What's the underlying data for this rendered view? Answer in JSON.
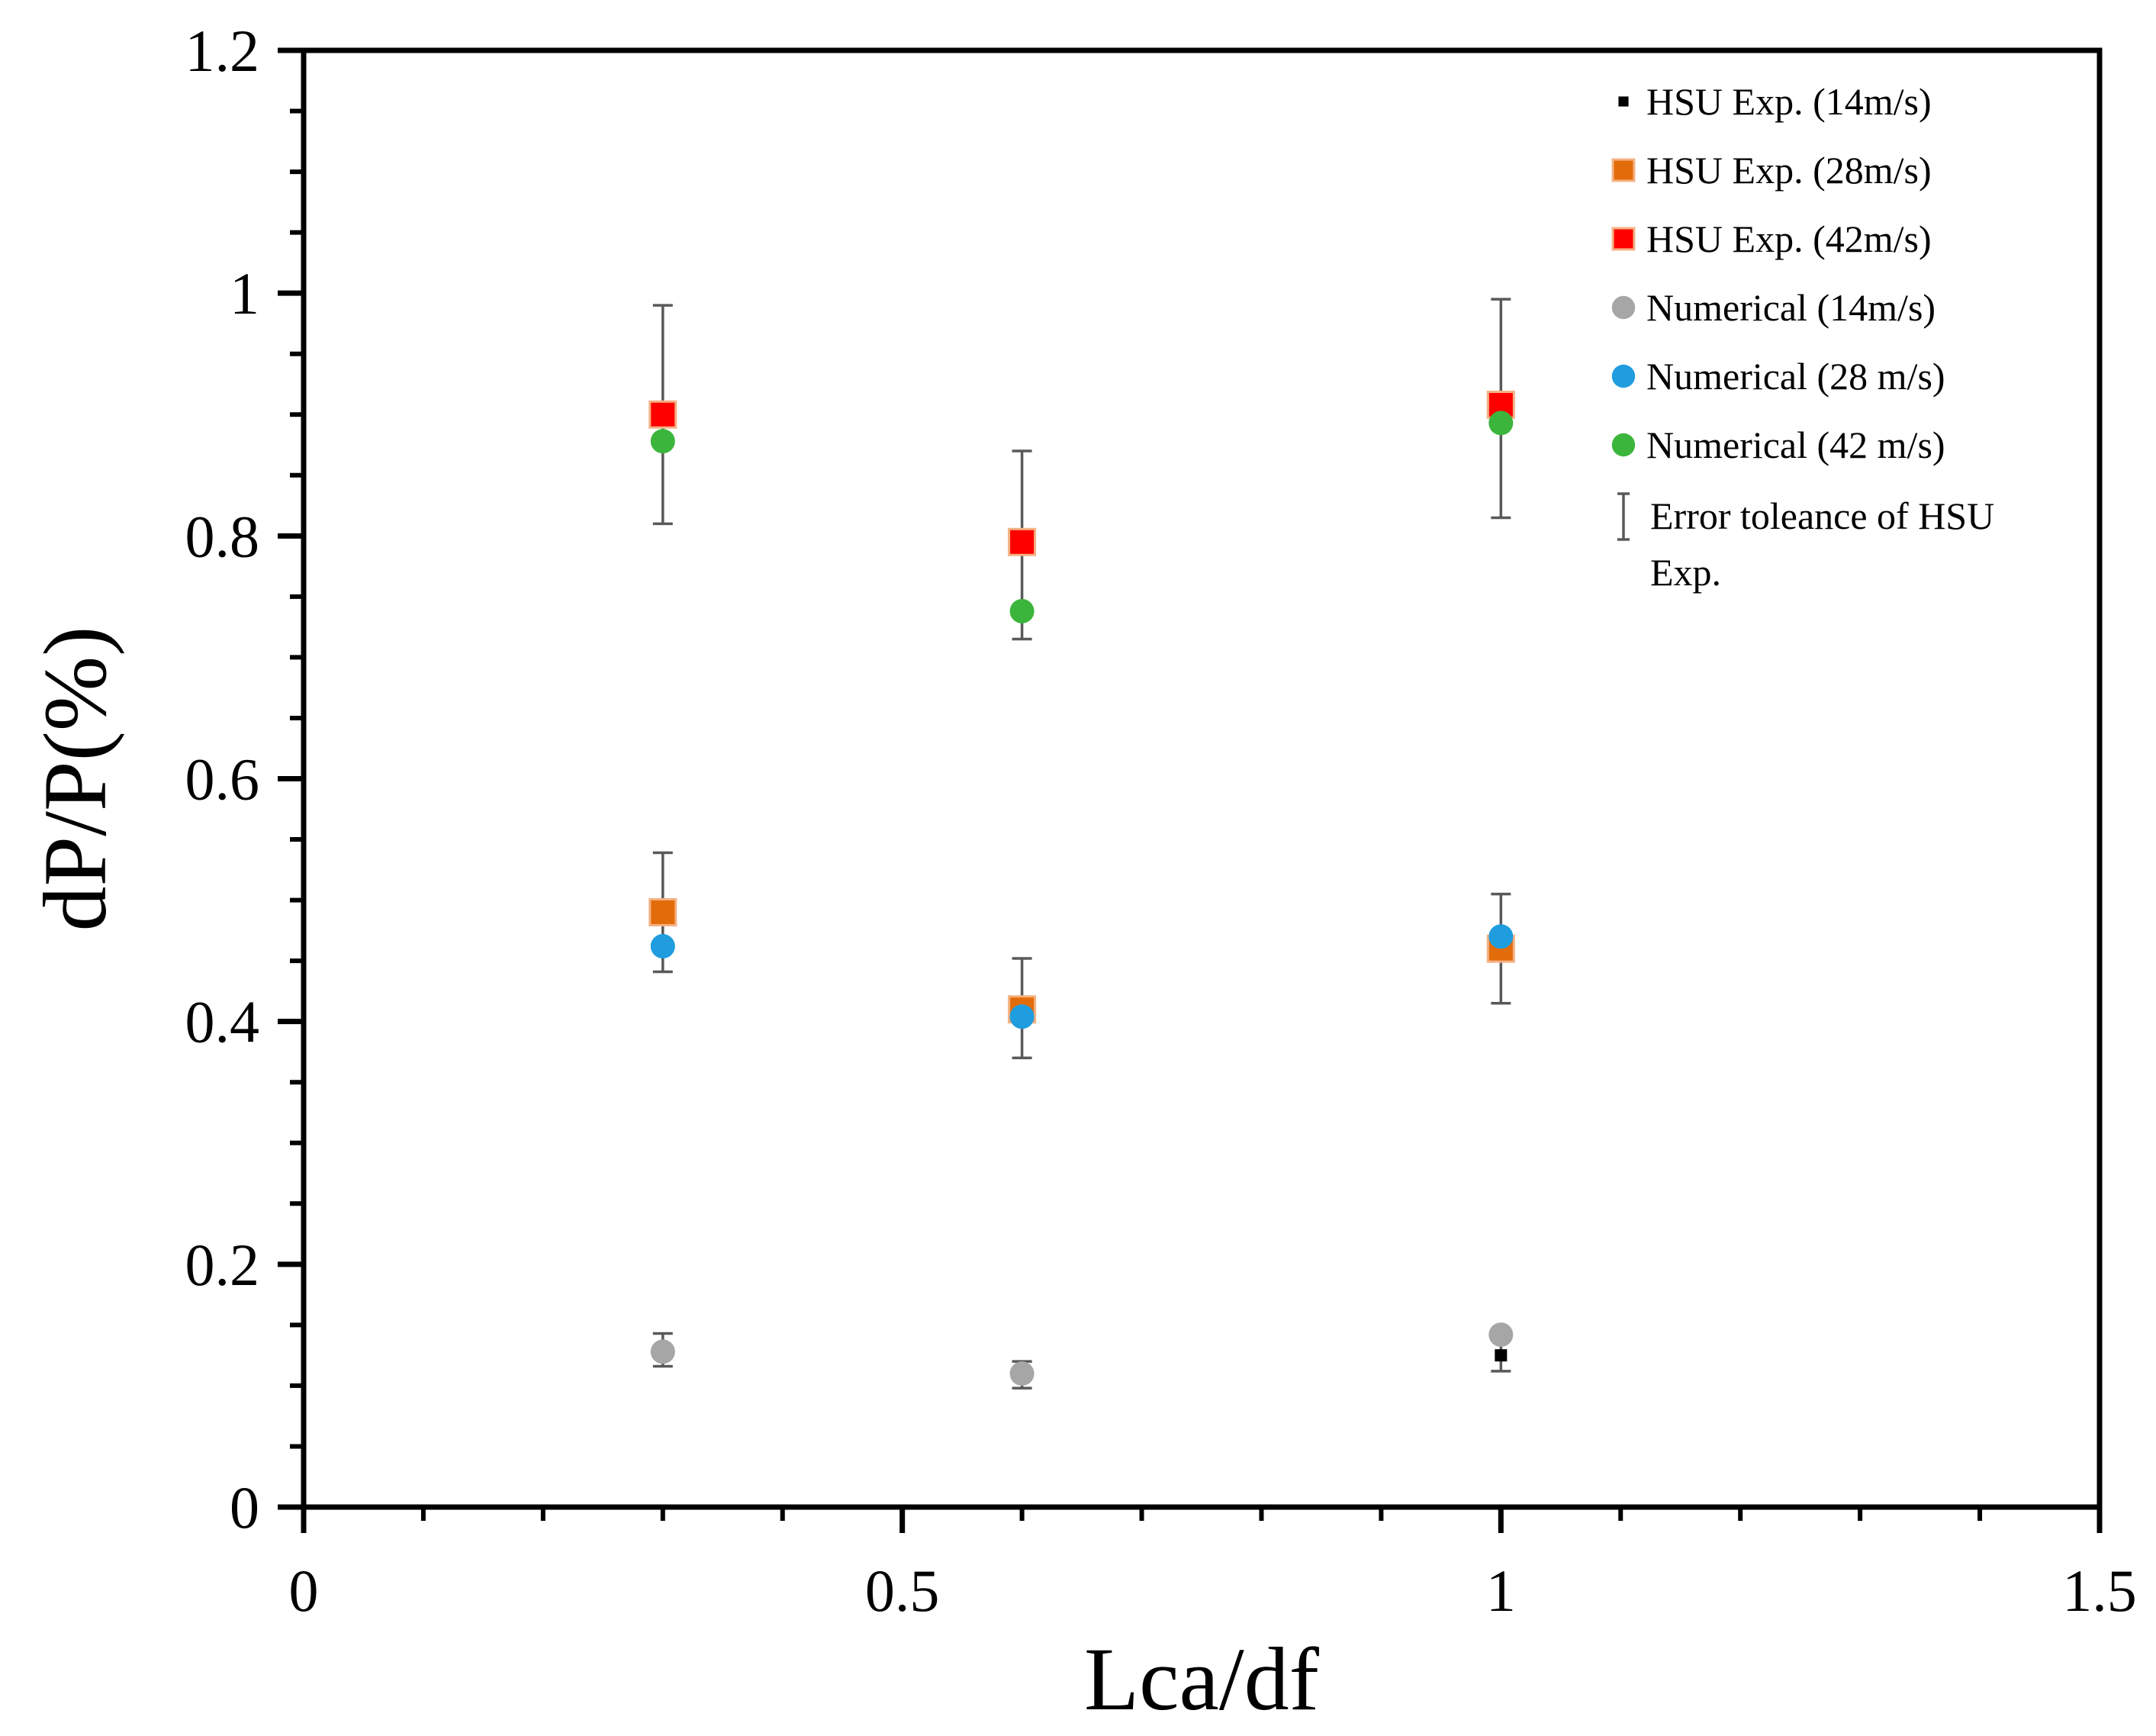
{
  "chart_data": {
    "type": "scatter",
    "title": "",
    "xlabel": "Lca/df",
    "ylabel": "dP/P(%)",
    "xlim": [
      0,
      1.5
    ],
    "ylim": [
      0,
      1.2
    ],
    "x_ticks": [
      0,
      0.5,
      1,
      1.5
    ],
    "x_tick_labels": [
      "0",
      "0.5",
      "1",
      "1.5"
    ],
    "y_ticks": [
      0,
      0.2,
      0.4,
      0.6,
      0.8,
      1,
      1.2
    ],
    "y_tick_labels": [
      "0",
      "0.2",
      "0.4",
      "0.6",
      "0.8",
      "1",
      "1.2"
    ],
    "x_minor_step": 0.1,
    "y_minor_step": 0.05,
    "grid": false,
    "legend_position": "top-right",
    "series": [
      {
        "name": "HSU Exp. (14m/s)",
        "marker": "square-small",
        "color": "#000000",
        "x": [
          0.3,
          0.6,
          1.0
        ],
        "y": [
          0.13,
          0.11,
          0.125
        ],
        "yerr_low": [
          0.116,
          0.098,
          0.112
        ],
        "yerr_high": [
          0.143,
          0.12,
          0.14
        ]
      },
      {
        "name": "HSU Exp. (28m/s)",
        "marker": "square",
        "color": "#e36c0a",
        "x": [
          0.3,
          0.6,
          1.0
        ],
        "y": [
          0.49,
          0.41,
          0.46
        ],
        "yerr_low": [
          0.441,
          0.37,
          0.415
        ],
        "yerr_high": [
          0.539,
          0.452,
          0.505
        ]
      },
      {
        "name": "HSU Exp. (42m/s)",
        "marker": "square",
        "color": "#ff0000",
        "x": [
          0.3,
          0.6,
          1.0
        ],
        "y": [
          0.9,
          0.795,
          0.908
        ],
        "yerr_low": [
          0.81,
          0.715,
          0.815
        ],
        "yerr_high": [
          0.99,
          0.87,
          0.995
        ]
      },
      {
        "name": "Numerical (14m/s)",
        "marker": "circle",
        "color": "#a6a6a6",
        "x": [
          0.3,
          0.6,
          1.0
        ],
        "y": [
          0.128,
          0.11,
          0.142
        ]
      },
      {
        "name": "Numerical (28 m/s)",
        "marker": "circle",
        "color": "#1f9ddf",
        "x": [
          0.3,
          0.6,
          1.0
        ],
        "y": [
          0.462,
          0.404,
          0.47
        ]
      },
      {
        "name": "Numerical (42 m/s)",
        "marker": "circle",
        "color": "#3cb53c",
        "x": [
          0.3,
          0.6,
          1.0
        ],
        "y": [
          0.878,
          0.738,
          0.893
        ]
      }
    ],
    "error_bar_legend": [
      "Error toleance of HSU",
      "Exp."
    ],
    "error_bar_color": "#595959",
    "square_edge_color": "#f4b183"
  }
}
